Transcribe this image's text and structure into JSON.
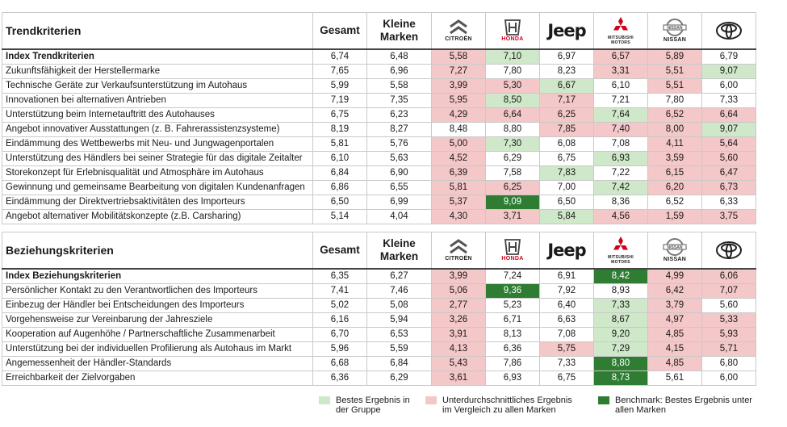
{
  "columns": {
    "gesamt": "Gesamt",
    "kleine": "Kleine Marken",
    "brands": [
      {
        "name": "Citroën",
        "caption": "CITROËN",
        "icon": "citroen-logo-icon"
      },
      {
        "name": "Honda",
        "caption": "HONDA",
        "icon": "honda-logo-icon"
      },
      {
        "name": "Jeep",
        "caption": "Jeep",
        "icon": "jeep-logo-icon"
      },
      {
        "name": "Mitsubishi Motors",
        "caption": "MITSUBISHI MOTORS",
        "icon": "mitsubishi-logo-icon"
      },
      {
        "name": "Nissan",
        "caption": "NISSAN",
        "icon": "nissan-logo-icon"
      },
      {
        "name": "Toyota",
        "caption": "",
        "icon": "toyota-logo-icon"
      }
    ]
  },
  "colors": {
    "light_green": "#cfe8c9",
    "pink": "#f4c7c9",
    "dark_green": "#2e7d32"
  },
  "sections": [
    {
      "title": "Trendkriterien",
      "rows": [
        {
          "label": "Index Trendkriterien",
          "index": true,
          "values": [
            "6,74",
            "6,48",
            "5,58",
            "7,10",
            "6,97",
            "6,57",
            "5,89",
            "6,79"
          ],
          "hl": [
            "",
            "",
            "pk",
            "lg",
            "",
            "pk",
            "pk",
            ""
          ]
        },
        {
          "label": "Zukunftsfähigkeit der Herstellermarke",
          "values": [
            "7,65",
            "6,96",
            "7,27",
            "7,80",
            "8,23",
            "3,31",
            "5,51",
            "9,07"
          ],
          "hl": [
            "",
            "",
            "pk",
            "",
            "",
            "pk",
            "pk",
            "lg"
          ]
        },
        {
          "label": "Technische Geräte zur Verkaufsunterstützung im Autohaus",
          "values": [
            "5,99",
            "5,58",
            "3,99",
            "5,30",
            "6,67",
            "6,10",
            "5,51",
            "6,00"
          ],
          "hl": [
            "",
            "",
            "pk",
            "pk",
            "lg",
            "",
            "pk",
            ""
          ]
        },
        {
          "label": "Innovationen bei alternativen Antrieben",
          "values": [
            "7,19",
            "7,35",
            "5,95",
            "8,50",
            "7,17",
            "7,21",
            "7,80",
            "7,33"
          ],
          "hl": [
            "",
            "",
            "pk",
            "lg",
            "pk",
            "",
            "",
            ""
          ]
        },
        {
          "label": "Unterstützung beim Internetauftritt des Autohauses",
          "values": [
            "6,75",
            "6,23",
            "4,29",
            "6,64",
            "6,25",
            "7,64",
            "6,52",
            "6,64"
          ],
          "hl": [
            "",
            "",
            "pk",
            "pk",
            "pk",
            "lg",
            "pk",
            "pk"
          ]
        },
        {
          "label": "Angebot innovativer Ausstattungen (z. B. Fahrerassistenzsysteme)",
          "values": [
            "8,19",
            "8,27",
            "8,48",
            "8,80",
            "7,85",
            "7,40",
            "8,00",
            "9,07"
          ],
          "hl": [
            "",
            "",
            "",
            "",
            "pk",
            "pk",
            "pk",
            "lg"
          ]
        },
        {
          "label": "Eindämmung des Wettbewerbs mit Neu- und Jungwagenportalen",
          "values": [
            "5,81",
            "5,76",
            "5,00",
            "7,30",
            "6,08",
            "7,08",
            "4,11",
            "5,64"
          ],
          "hl": [
            "",
            "",
            "pk",
            "lg",
            "",
            "",
            "pk",
            "pk"
          ]
        },
        {
          "label": "Unterstützung des Händlers bei seiner Strategie für das digitale Zeitalter",
          "values": [
            "6,10",
            "5,63",
            "4,52",
            "6,29",
            "6,75",
            "6,93",
            "3,59",
            "5,60"
          ],
          "hl": [
            "",
            "",
            "pk",
            "",
            "",
            "lg",
            "pk",
            "pk"
          ]
        },
        {
          "label": "Storekonzept für Erlebnisqualität und Atmosphäre im Autohaus",
          "values": [
            "6,84",
            "6,90",
            "6,39",
            "7,58",
            "7,83",
            "7,22",
            "6,15",
            "6,47"
          ],
          "hl": [
            "",
            "",
            "pk",
            "",
            "lg",
            "",
            "pk",
            "pk"
          ]
        },
        {
          "label": "Gewinnung und gemeinsame Bearbeitung von digitalen Kundenanfragen",
          "values": [
            "6,86",
            "6,55",
            "5,81",
            "6,25",
            "7,00",
            "7,42",
            "6,20",
            "6,73"
          ],
          "hl": [
            "",
            "",
            "pk",
            "pk",
            "",
            "lg",
            "pk",
            "pk"
          ]
        },
        {
          "label": "Eindämmung der Direktvertriebsaktivitäten des Importeurs",
          "values": [
            "6,50",
            "6,99",
            "5,37",
            "9,09",
            "6,50",
            "8,36",
            "6,52",
            "6,33"
          ],
          "hl": [
            "",
            "",
            "pk",
            "dg",
            "",
            "",
            "",
            ""
          ]
        },
        {
          "label": "Angebot alternativer Mobilitätskonzepte (z.B. Carsharing)",
          "values": [
            "5,14",
            "4,04",
            "4,30",
            "3,71",
            "5,84",
            "4,56",
            "1,59",
            "3,75"
          ],
          "hl": [
            "",
            "",
            "pk",
            "pk",
            "lg",
            "pk",
            "pk",
            "pk"
          ]
        }
      ]
    },
    {
      "title": "Beziehungskriterien",
      "rows": [
        {
          "label": "Index Beziehungskriterien",
          "index": true,
          "values": [
            "6,35",
            "6,27",
            "3,99",
            "7,24",
            "6,91",
            "8,42",
            "4,99",
            "6,06"
          ],
          "hl": [
            "",
            "",
            "pk",
            "",
            "",
            "dg",
            "pk",
            "pk"
          ]
        },
        {
          "label": "Persönlicher Kontakt zu den Verantwortlichen des Importeurs",
          "values": [
            "7,41",
            "7,46",
            "5,06",
            "9,36",
            "7,92",
            "8,93",
            "6,42",
            "7,07"
          ],
          "hl": [
            "",
            "",
            "pk",
            "dg",
            "",
            "",
            "pk",
            "pk"
          ]
        },
        {
          "label": "Einbezug der Händler bei Entscheidungen des Importeurs",
          "values": [
            "5,02",
            "5,08",
            "2,77",
            "5,23",
            "6,40",
            "7,33",
            "3,79",
            "5,60"
          ],
          "hl": [
            "",
            "",
            "pk",
            "",
            "",
            "lg",
            "pk",
            ""
          ]
        },
        {
          "label": "Vorgehensweise zur Vereinbarung der Jahresziele",
          "values": [
            "6,16",
            "5,94",
            "3,26",
            "6,71",
            "6,63",
            "8,67",
            "4,97",
            "5,33"
          ],
          "hl": [
            "",
            "",
            "pk",
            "",
            "",
            "lg",
            "pk",
            "pk"
          ]
        },
        {
          "label": "Kooperation auf Augenhöhe / Partnerschaftliche Zusammenarbeit",
          "values": [
            "6,70",
            "6,53",
            "3,91",
            "8,13",
            "7,08",
            "9,20",
            "4,85",
            "5,93"
          ],
          "hl": [
            "",
            "",
            "pk",
            "",
            "",
            "lg",
            "pk",
            "pk"
          ]
        },
        {
          "label": "Unterstützung bei der individuellen Profilierung als Autohaus im Markt",
          "values": [
            "5,96",
            "5,59",
            "4,13",
            "6,36",
            "5,75",
            "7,29",
            "4,15",
            "5,71"
          ],
          "hl": [
            "",
            "",
            "pk",
            "",
            "pk",
            "lg",
            "pk",
            "pk"
          ]
        },
        {
          "label": "Angemessenheit der Händler-Standards",
          "values": [
            "6,68",
            "6,84",
            "5,43",
            "7,86",
            "7,33",
            "8,80",
            "4,85",
            "6,80"
          ],
          "hl": [
            "",
            "",
            "pk",
            "",
            "",
            "dg",
            "pk",
            ""
          ]
        },
        {
          "label": "Erreichbarkeit der Zielvorgaben",
          "values": [
            "6,36",
            "6,29",
            "3,61",
            "6,93",
            "6,75",
            "8,73",
            "5,61",
            "6,00"
          ],
          "hl": [
            "",
            "",
            "pk",
            "",
            "",
            "dg",
            "",
            ""
          ]
        }
      ]
    }
  ],
  "legend": [
    {
      "text": "Bestes Ergebnis in der Gruppe",
      "color": "#cfe8c9"
    },
    {
      "text": "Unterdurchschnittliches Ergebnis im Vergleich zu allen Marken",
      "color": "#f4c7c9"
    },
    {
      "text": "Benchmark: Bestes Ergebnis unter allen Marken",
      "color": "#2e7d32"
    }
  ]
}
